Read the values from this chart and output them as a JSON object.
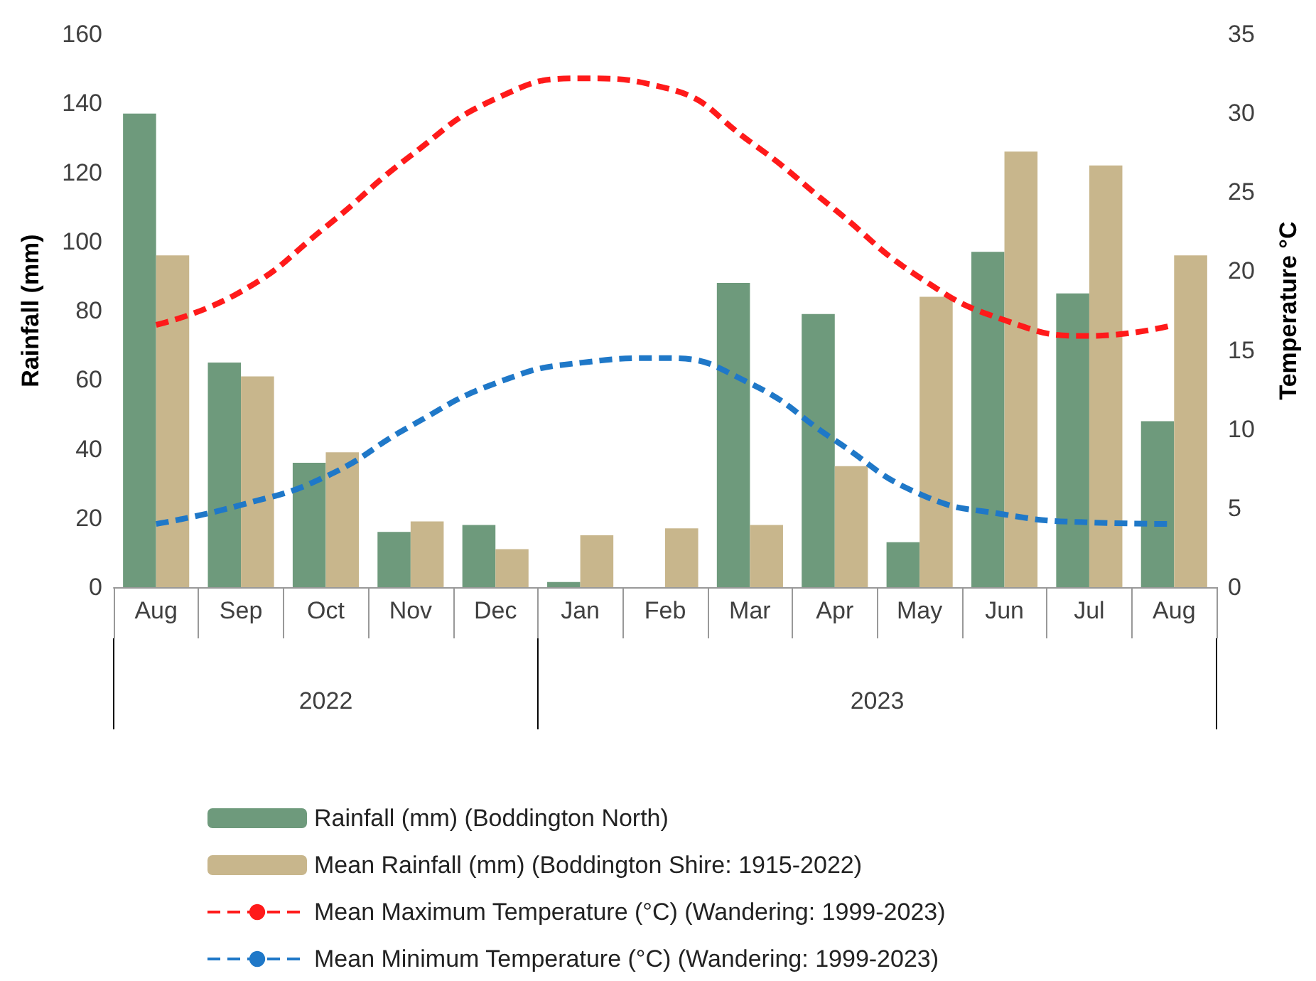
{
  "chart_data": {
    "type": "bar",
    "ylabel": "Rainfall (mm)",
    "y2label": "Temperature °C",
    "categories": [
      "Aug",
      "Sep",
      "Oct",
      "Nov",
      "Dec",
      "Jan",
      "Feb",
      "Mar",
      "Apr",
      "May",
      "Jun",
      "Jul",
      "Aug"
    ],
    "series": [
      {
        "name": "Rainfall (mm) (Boddington North)",
        "color": "#6e9a7c",
        "values": [
          137,
          65,
          36,
          16,
          18,
          1.5,
          0,
          88,
          79,
          13,
          97,
          85,
          48
        ]
      },
      {
        "name": "Mean Rainfall (mm) (Boddington Shire: 1915-2022)",
        "color": "#c8b68c",
        "values": [
          96,
          61,
          39,
          19,
          11,
          15,
          17,
          18,
          35,
          84,
          126,
          122,
          96
        ]
      },
      {
        "name": "Mean Maximum Temperature (°C) (Wandering: 1999-2023)",
        "type": "line",
        "axis": "y2",
        "color": "#ff1a1a",
        "line_style": "dashed",
        "marker": "none",
        "values": [
          16.6,
          18.7,
          22.8,
          27.3,
          30.9,
          32.2,
          31.6,
          28.2,
          23.9,
          19.6,
          16.9,
          15.9,
          16.6
        ]
      },
      {
        "name": "Mean Minimum Temperature (°C) (Wandering: 1999-2023)",
        "type": "line",
        "axis": "y2",
        "color": "#1f78c8",
        "line_style": "dashed",
        "marker": "none",
        "values": [
          4.0,
          5.2,
          7.0,
          10.2,
          12.9,
          14.2,
          14.5,
          12.9,
          9.3,
          5.9,
          4.6,
          4.1,
          4.0
        ]
      }
    ],
    "ylim": [
      0,
      160
    ],
    "yticks": [
      0,
      20,
      40,
      60,
      80,
      100,
      120,
      140,
      160
    ],
    "y2lim": [
      0,
      35
    ],
    "y2ticks": [
      0,
      5,
      10,
      15,
      20,
      25,
      30,
      35
    ],
    "annotations": [
      "2022",
      "2023"
    ],
    "grid": false,
    "legend": "bottom"
  }
}
